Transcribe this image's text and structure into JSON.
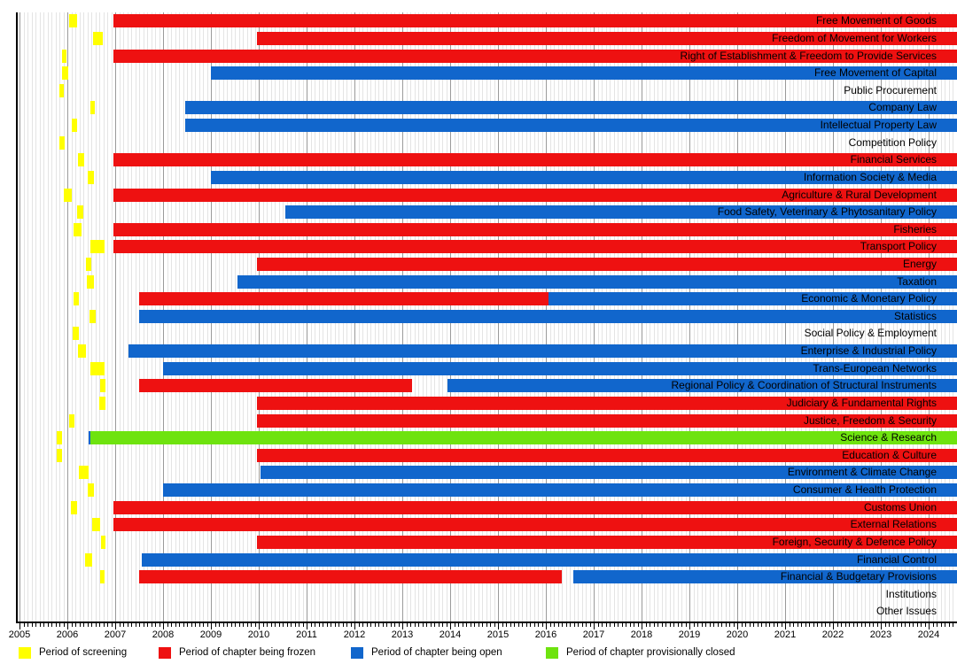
{
  "chart_data": {
    "type": "gantt",
    "title": "",
    "x_axis": {
      "start": 2005,
      "end": 2024,
      "tick_interval": 1,
      "minor_ticks": "monthly",
      "grid": true
    },
    "colors": {
      "screening": "#ffff00",
      "frozen": "#ee1111",
      "open": "#1166cc",
      "closed": "#6ee30f"
    },
    "legend": [
      {
        "key": "screening",
        "label": "Period of screening"
      },
      {
        "key": "frozen",
        "label": "Period of chapter being frozen"
      },
      {
        "key": "open",
        "label": "Period of chapter being open"
      },
      {
        "key": "closed",
        "label": "Period of chapter provisionally closed"
      }
    ],
    "rows": [
      {
        "label": "Free Movement of Goods",
        "segments": [
          {
            "type": "screening",
            "start": 2006.04,
            "end": 2006.2
          },
          {
            "type": "frozen",
            "start": 2006.97,
            "end": null
          }
        ]
      },
      {
        "label": "Freedom of Movement for Workers",
        "segments": [
          {
            "type": "screening",
            "start": 2006.54,
            "end": 2006.74
          },
          {
            "type": "frozen",
            "start": 2009.97,
            "end": null
          }
        ]
      },
      {
        "label": "Right of Establishment & Freedom to Provide Services",
        "segments": [
          {
            "type": "screening",
            "start": 2005.89,
            "end": 2005.99
          },
          {
            "type": "frozen",
            "start": 2006.97,
            "end": null
          }
        ]
      },
      {
        "label": "Free Movement of Capital",
        "segments": [
          {
            "type": "screening",
            "start": 2005.89,
            "end": 2006.02
          },
          {
            "type": "open",
            "start": 2009.0,
            "end": null
          }
        ]
      },
      {
        "label": "Public Procurement",
        "segments": [
          {
            "type": "screening",
            "start": 2005.84,
            "end": 2005.93
          }
        ]
      },
      {
        "label": "Company Law",
        "segments": [
          {
            "type": "screening",
            "start": 2006.48,
            "end": 2006.58
          },
          {
            "type": "open",
            "start": 2008.47,
            "end": null
          }
        ]
      },
      {
        "label": "Intellectual Property Law",
        "segments": [
          {
            "type": "screening",
            "start": 2006.09,
            "end": 2006.2
          },
          {
            "type": "open",
            "start": 2008.47,
            "end": null
          }
        ]
      },
      {
        "label": "Competition Policy",
        "segments": [
          {
            "type": "screening",
            "start": 2005.83,
            "end": 2005.94
          }
        ]
      },
      {
        "label": "Financial Services",
        "segments": [
          {
            "type": "screening",
            "start": 2006.23,
            "end": 2006.35
          },
          {
            "type": "frozen",
            "start": 2006.97,
            "end": null
          }
        ]
      },
      {
        "label": "Information Society & Media",
        "segments": [
          {
            "type": "screening",
            "start": 2006.43,
            "end": 2006.56
          },
          {
            "type": "open",
            "start": 2009.0,
            "end": null
          }
        ]
      },
      {
        "label": "Agriculture & Rural Development",
        "segments": [
          {
            "type": "screening",
            "start": 2005.92,
            "end": 2006.09
          },
          {
            "type": "frozen",
            "start": 2006.97,
            "end": null
          }
        ]
      },
      {
        "label": "Food Safety, Veterinary & Phytosanitary Policy",
        "segments": [
          {
            "type": "screening",
            "start": 2006.2,
            "end": 2006.34
          },
          {
            "type": "open",
            "start": 2010.56,
            "end": null
          }
        ]
      },
      {
        "label": "Fisheries",
        "segments": [
          {
            "type": "screening",
            "start": 2006.13,
            "end": 2006.29
          },
          {
            "type": "frozen",
            "start": 2006.97,
            "end": null
          }
        ]
      },
      {
        "label": "Transport Policy",
        "segments": [
          {
            "type": "screening",
            "start": 2006.48,
            "end": 2006.78
          },
          {
            "type": "frozen",
            "start": 2006.97,
            "end": null
          }
        ]
      },
      {
        "label": "Energy",
        "segments": [
          {
            "type": "screening",
            "start": 2006.39,
            "end": 2006.5
          },
          {
            "type": "frozen",
            "start": 2009.97,
            "end": null
          }
        ]
      },
      {
        "label": "Taxation",
        "segments": [
          {
            "type": "screening",
            "start": 2006.41,
            "end": 2006.56
          },
          {
            "type": "open",
            "start": 2009.55,
            "end": null
          }
        ]
      },
      {
        "label": "Economic & Monetary Policy",
        "segments": [
          {
            "type": "screening",
            "start": 2006.13,
            "end": 2006.24
          },
          {
            "type": "frozen",
            "start": 2007.5,
            "end": 2016.05
          },
          {
            "type": "open",
            "start": 2016.05,
            "end": null
          }
        ]
      },
      {
        "label": "Statistics",
        "segments": [
          {
            "type": "screening",
            "start": 2006.46,
            "end": 2006.59
          },
          {
            "type": "open",
            "start": 2007.5,
            "end": null
          }
        ]
      },
      {
        "label": "Social Policy & Employment",
        "segments": [
          {
            "type": "screening",
            "start": 2006.11,
            "end": 2006.24
          }
        ]
      },
      {
        "label": "Enterprise & Industrial Policy",
        "segments": [
          {
            "type": "screening",
            "start": 2006.22,
            "end": 2006.39
          },
          {
            "type": "open",
            "start": 2007.27,
            "end": null
          }
        ]
      },
      {
        "label": "Trans-European Networks",
        "segments": [
          {
            "type": "screening",
            "start": 2006.48,
            "end": 2006.78
          },
          {
            "type": "open",
            "start": 2008.0,
            "end": null
          }
        ]
      },
      {
        "label": "Regional Policy & Coordination of Structural Instruments",
        "segments": [
          {
            "type": "screening",
            "start": 2006.69,
            "end": 2006.8
          },
          {
            "type": "frozen",
            "start": 2007.5,
            "end": 2013.21
          },
          {
            "type": "open",
            "start": 2013.94,
            "end": null
          }
        ]
      },
      {
        "label": "Judiciary & Fundamental Rights",
        "segments": [
          {
            "type": "screening",
            "start": 2006.67,
            "end": 2006.8
          },
          {
            "type": "frozen",
            "start": 2009.97,
            "end": null
          }
        ]
      },
      {
        "label": "Justice, Freedom & Security",
        "segments": [
          {
            "type": "screening",
            "start": 2006.04,
            "end": 2006.15
          },
          {
            "type": "frozen",
            "start": 2009.97,
            "end": null
          }
        ]
      },
      {
        "label": "Science & Research",
        "segments": [
          {
            "type": "screening",
            "start": 2005.78,
            "end": 2005.89
          },
          {
            "type": "open",
            "start": 2006.44,
            "end": 2006.48
          },
          {
            "type": "closed",
            "start": 2006.48,
            "end": null
          }
        ]
      },
      {
        "label": "Education & Culture",
        "segments": [
          {
            "type": "screening",
            "start": 2005.78,
            "end": 2005.89
          },
          {
            "type": "frozen",
            "start": 2009.97,
            "end": null
          }
        ]
      },
      {
        "label": "Environment & Climate Change",
        "segments": [
          {
            "type": "screening",
            "start": 2006.24,
            "end": 2006.44
          },
          {
            "type": "open",
            "start": 2010.03,
            "end": null
          }
        ]
      },
      {
        "label": "Consumer & Health Protection",
        "segments": [
          {
            "type": "screening",
            "start": 2006.43,
            "end": 2006.55
          },
          {
            "type": "open",
            "start": 2008.0,
            "end": null
          }
        ]
      },
      {
        "label": "Customs Union",
        "segments": [
          {
            "type": "screening",
            "start": 2006.08,
            "end": 2006.2
          },
          {
            "type": "frozen",
            "start": 2006.97,
            "end": null
          }
        ]
      },
      {
        "label": "External Relations",
        "segments": [
          {
            "type": "screening",
            "start": 2006.52,
            "end": 2006.69
          },
          {
            "type": "frozen",
            "start": 2006.97,
            "end": null
          }
        ]
      },
      {
        "label": "Foreign, Security & Defence Policy",
        "segments": [
          {
            "type": "screening",
            "start": 2006.7,
            "end": 2006.8
          },
          {
            "type": "frozen",
            "start": 2009.97,
            "end": null
          }
        ]
      },
      {
        "label": "Financial Control",
        "segments": [
          {
            "type": "screening",
            "start": 2006.37,
            "end": 2006.51
          },
          {
            "type": "open",
            "start": 2007.55,
            "end": null
          }
        ]
      },
      {
        "label": "Financial & Budgetary Provisions",
        "segments": [
          {
            "type": "screening",
            "start": 2006.69,
            "end": 2006.78
          },
          {
            "type": "frozen",
            "start": 2007.5,
            "end": 2016.33
          },
          {
            "type": "open",
            "start": 2016.58,
            "end": null
          }
        ]
      },
      {
        "label": "Institutions",
        "segments": []
      },
      {
        "label": "Other Issues",
        "segments": []
      }
    ]
  }
}
